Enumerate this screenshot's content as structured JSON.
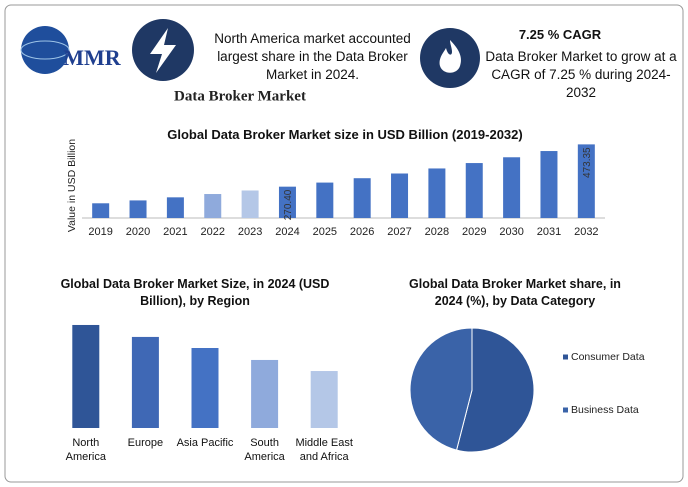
{
  "header": {
    "logo": "MMR",
    "title": "Data Broker Market",
    "highlight_1": "North America market accounted largest share in the Data Broker Market in 2024.",
    "highlight_2_title": "7.25 % CAGR",
    "highlight_2": "Data Broker Market to grow at a CAGR of 7.25 % during 2024-2032"
  },
  "chart_data": [
    {
      "type": "bar",
      "title": "Global Data Broker Market size in USD Billion (2019-2032)",
      "y_label": "Value in USD Billion",
      "categories": [
        "2019",
        "2020",
        "2021",
        "2022",
        "2023",
        "2024",
        "2025",
        "2026",
        "2027",
        "2028",
        "2029",
        "2030",
        "2031",
        "2032"
      ],
      "values": [
        190.6,
        204.4,
        219.2,
        235.1,
        252.1,
        270.4,
        290.0,
        311.0,
        333.6,
        357.8,
        383.7,
        411.5,
        441.4,
        473.35
      ],
      "value_labels": [
        null,
        null,
        null,
        null,
        null,
        "270.40",
        null,
        null,
        null,
        null,
        null,
        null,
        null,
        "473.35"
      ],
      "colors": [
        "#4472c4",
        "#4472c4",
        "#4472c4",
        "#8faadc",
        "#b4c7e7",
        "#4472c4",
        "#4472c4",
        "#4472c4",
        "#4472c4",
        "#4472c4",
        "#4472c4",
        "#4472c4",
        "#4472c4",
        "#4472c4"
      ],
      "ylim": [
        120,
        480
      ]
    },
    {
      "type": "bar",
      "title": "Global Data Broker Market Size, in 2024 (USD Billion), by Region",
      "categories": [
        "North America",
        "Europe",
        "Asia Pacific",
        "South America",
        "Middle East and Africa"
      ],
      "values": [
        69.8,
        61.7,
        54.2,
        46.1,
        38.6
      ],
      "colors": [
        "#2f5597",
        "#3f68b5",
        "#4472c4",
        "#8faadc",
        "#b4c7e7"
      ],
      "ylim": [
        0,
        75
      ]
    },
    {
      "type": "pie",
      "title": "Global Data Broker Market share, in 2024 (%), by Data Category",
      "categories": [
        "Consumer Data",
        "Business Data"
      ],
      "values": [
        54,
        46
      ],
      "colors": [
        "#2f5597",
        "#3a63a8"
      ]
    }
  ]
}
